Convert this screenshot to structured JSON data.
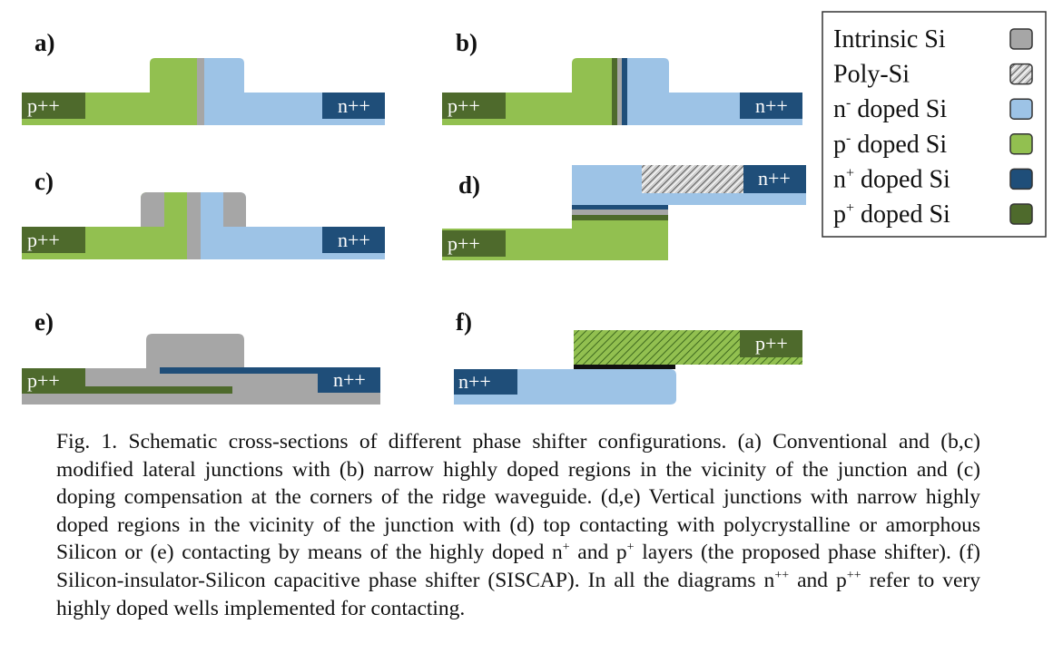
{
  "colors": {
    "intrinsic_si": "#a6a6a6",
    "n_minus": "#9dc3e6",
    "p_minus": "#92c050",
    "n_plus": "#1f4e79",
    "p_plus": "#4e6a2c",
    "n_plus_plus_well": "#1f4e79",
    "p_plus_plus_well": "#4e6a2c",
    "insulator": "#111111"
  },
  "panels": [
    {
      "id": "a",
      "label": "a)",
      "left_well": "p++",
      "right_well": "n++"
    },
    {
      "id": "b",
      "label": "b)",
      "left_well": "p++",
      "right_well": "n++"
    },
    {
      "id": "c",
      "label": "c)",
      "left_well": "p++",
      "right_well": "n++"
    },
    {
      "id": "d",
      "label": "d)",
      "left_well": "p++",
      "right_well": "n++"
    },
    {
      "id": "e",
      "label": "e)",
      "left_well": "p++",
      "right_well": "n++"
    },
    {
      "id": "f",
      "label": "f)",
      "left_well": "n++",
      "right_well": "p++"
    }
  ],
  "legend": {
    "items": [
      {
        "base": "Intrinsic Si",
        "sup": "",
        "rest": "",
        "swatch": "intrinsic_si",
        "hatched": false
      },
      {
        "base": "Poly-Si",
        "sup": "",
        "rest": "",
        "swatch": "intrinsic_si",
        "hatched": true
      },
      {
        "base": "n",
        "sup": "-",
        "rest": " doped Si",
        "swatch": "n_minus",
        "hatched": false
      },
      {
        "base": "p",
        "sup": "-",
        "rest": " doped Si",
        "swatch": "p_minus",
        "hatched": false
      },
      {
        "base": "n",
        "sup": "+",
        "rest": " doped Si",
        "swatch": "n_plus",
        "hatched": false
      },
      {
        "base": "p",
        "sup": "+",
        "rest": " doped Si",
        "swatch": "p_plus",
        "hatched": false
      }
    ]
  },
  "caption": {
    "part1": "Fig. 1. Schematic cross-sections of different phase shifter configurations. (a) Conventional and (b,c) modified lateral junctions with (b) narrow highly doped regions in the vicinity of the junction and (c) doping compensation at the corners of the ridge waveguide. (d,e) Vertical junctions with narrow highly doped regions in the vicinity of the junction with (d) top contacting with polycrystalline or amorphous Silicon or (e) contacting by means of the highly doped n",
    "sup1": "+",
    "part2": " and p",
    "sup2": "+",
    "part3": " layers (the proposed phase shifter). (f) Silicon-insulator-Silicon capacitive phase shifter (SISCAP). In all the diagrams n",
    "sup3": "++",
    "part4": " and p",
    "sup4": "++",
    "part5": " refer to very highly doped wells implemented for contacting."
  }
}
